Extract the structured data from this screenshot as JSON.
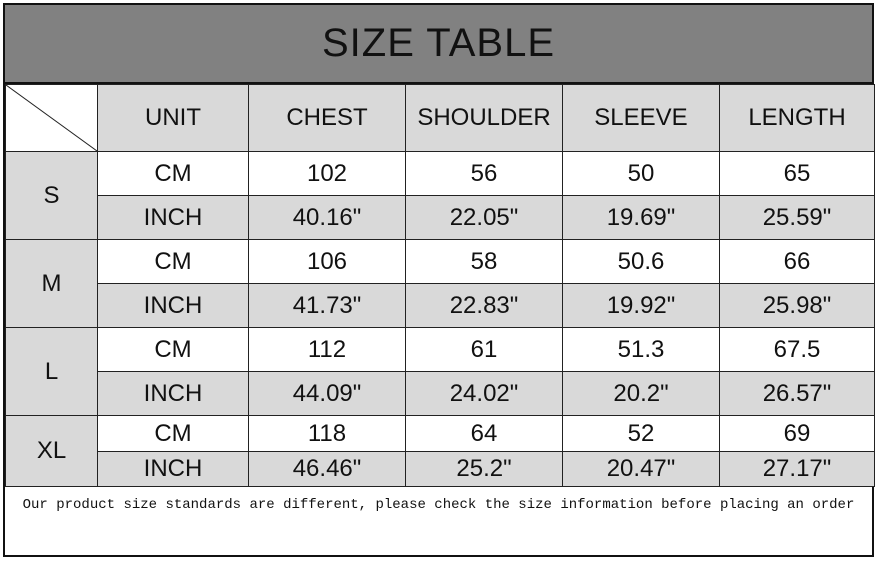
{
  "title": "SIZE TABLE",
  "headers": [
    "UNIT",
    "CHEST",
    "SHOULDER",
    "SLEEVE",
    "LENGTH"
  ],
  "sizes": [
    {
      "size": "S",
      "cm": {
        "unit": "CM",
        "values": [
          "102",
          "56",
          "50",
          "65"
        ]
      },
      "inch": {
        "unit": "INCH",
        "values": [
          "40.16\"",
          "22.05\"",
          "19.69\"",
          "25.59\""
        ]
      }
    },
    {
      "size": "M",
      "cm": {
        "unit": "CM",
        "values": [
          "106",
          "58",
          "50.6",
          "66"
        ]
      },
      "inch": {
        "unit": "INCH",
        "values": [
          "41.73\"",
          "22.83\"",
          "19.92\"",
          "25.98\""
        ]
      }
    },
    {
      "size": "L",
      "cm": {
        "unit": "CM",
        "values": [
          "112",
          "61",
          "51.3",
          "67.5"
        ]
      },
      "inch": {
        "unit": "INCH",
        "values": [
          "44.09\"",
          "24.02\"",
          "20.2\"",
          "26.57\""
        ]
      }
    },
    {
      "size": "XL",
      "cm": {
        "unit": "CM",
        "values": [
          "118",
          "64",
          "52",
          "69"
        ]
      },
      "inch": {
        "unit": "INCH",
        "values": [
          "46.46\"",
          "25.2\"",
          "20.47\"",
          "27.17\""
        ]
      }
    }
  ],
  "footer": "Our product size standards are different, please check the size information before placing an order",
  "colors": {
    "title_bg": "#818181",
    "cell_grey": "#d9d9d9",
    "cell_white": "#ffffff"
  }
}
